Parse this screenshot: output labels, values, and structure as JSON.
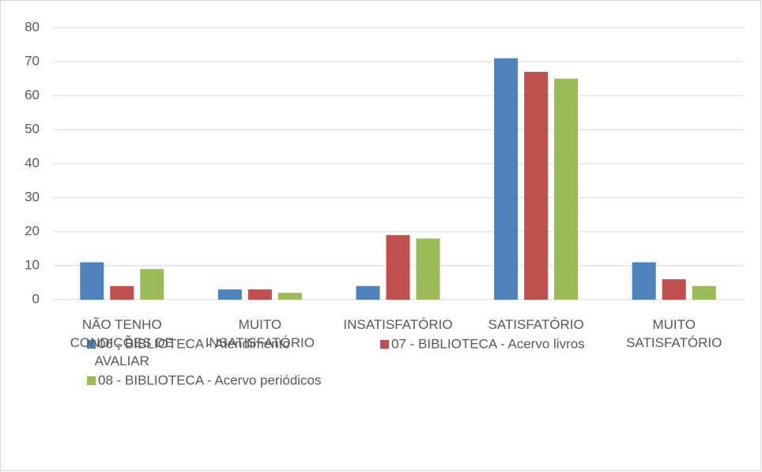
{
  "chart_data": {
    "type": "bar",
    "categories": [
      "NÃO TENHO CONDIÇÕES DE AVALIAR",
      "MUITO INSATISFATÓRIO",
      "INSATISFATÓRIO",
      "SATISFATÓRIO",
      "MUITO SATISFATÓRIO"
    ],
    "series": [
      {
        "name": "06 - BIBLIOTECA - Atendimento",
        "color": "#4f81bd",
        "values": [
          11,
          3,
          4,
          71,
          11
        ]
      },
      {
        "name": "07 - BIBLIOTECA - Acervo livros",
        "color": "#c0504d",
        "values": [
          4,
          3,
          19,
          67,
          6
        ]
      },
      {
        "name": "08 - BIBLIOTECA - Acervo periódicos",
        "color": "#9bbb59",
        "values": [
          9,
          2,
          18,
          65,
          4
        ]
      }
    ],
    "ylim": [
      0,
      80
    ],
    "yticks": [
      0,
      10,
      20,
      30,
      40,
      50,
      60,
      70,
      80
    ],
    "grid": true,
    "legend": "bottom"
  }
}
